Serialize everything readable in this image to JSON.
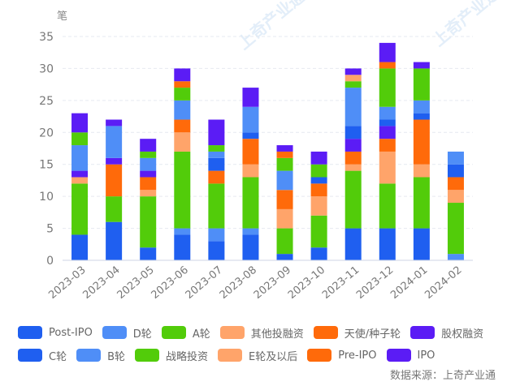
{
  "chart_data": {
    "type": "bar",
    "stacked": true,
    "title": "",
    "unit_label": "笔",
    "xlabel": "",
    "ylabel": "笔",
    "ylim": [
      0,
      35
    ],
    "yticks": [
      0,
      5,
      10,
      15,
      20,
      25,
      30,
      35
    ],
    "grid": true,
    "legend_position": "bottom",
    "categories": [
      "2023-03",
      "2023-04",
      "2023-05",
      "2023-06",
      "2023-07",
      "2023-08",
      "2023-09",
      "2023-10",
      "2023-11",
      "2023-12",
      "2024-01",
      "2024-02"
    ],
    "series": [
      {
        "name": "Post-IPO",
        "color": "#1F5FF0",
        "values": [
          4,
          6,
          2,
          4,
          3,
          4,
          1,
          2,
          5,
          5,
          5,
          0
        ]
      },
      {
        "name": "D轮",
        "color": "#4F8EF7",
        "values": [
          0,
          0,
          0,
          1,
          2,
          1,
          0,
          0,
          0,
          0,
          0,
          1
        ]
      },
      {
        "name": "A轮",
        "color": "#52CC0A",
        "values": [
          8,
          4,
          8,
          12,
          7,
          8,
          4,
          5,
          9,
          7,
          8,
          8
        ]
      },
      {
        "name": "其他投融资",
        "color": "#FFA46A",
        "values": [
          1,
          0,
          1,
          3,
          0,
          2,
          3,
          3,
          1,
          5,
          2,
          2
        ]
      },
      {
        "name": "天使/种子轮",
        "color": "#FF6A0A",
        "values": [
          0,
          5,
          2,
          2,
          2,
          4,
          3,
          2,
          2,
          2,
          7,
          2
        ]
      },
      {
        "name": "股权融资",
        "color": "#5B1CF5",
        "values": [
          1,
          1,
          1,
          0,
          0,
          0,
          0,
          0,
          2,
          2,
          0,
          0
        ]
      },
      {
        "name": "C轮",
        "color": "#1F5FF0",
        "values": [
          0,
          0,
          0,
          0,
          2,
          1,
          0,
          1,
          2,
          1,
          1,
          2
        ]
      },
      {
        "name": "B轮",
        "color": "#4F8EF7",
        "values": [
          4,
          5,
          2,
          3,
          1,
          4,
          3,
          0,
          6,
          2,
          2,
          2
        ]
      },
      {
        "name": "战略投资",
        "color": "#52CC0A",
        "values": [
          2,
          0,
          1,
          2,
          1,
          0,
          2,
          2,
          1,
          6,
          5,
          0
        ]
      },
      {
        "name": "E轮及以后",
        "color": "#FFA46A",
        "values": [
          0,
          0,
          0,
          0,
          0,
          0,
          0,
          0,
          1,
          0,
          0,
          0
        ]
      },
      {
        "name": "Pre-IPO",
        "color": "#FF6A0A",
        "values": [
          0,
          0,
          0,
          1,
          0,
          0,
          1,
          0,
          0,
          1,
          0,
          0
        ]
      },
      {
        "name": "IPO",
        "color": "#5B1CF5",
        "values": [
          3,
          1,
          2,
          2,
          4,
          3,
          1,
          2,
          1,
          3,
          1,
          0
        ]
      }
    ],
    "source": "数据来源：上奇产业通",
    "watermark": "上奇产业通"
  }
}
